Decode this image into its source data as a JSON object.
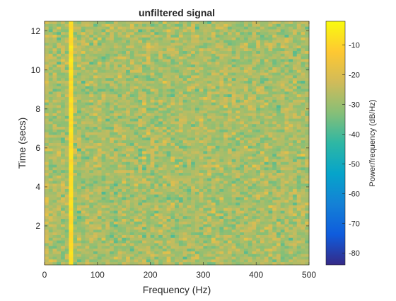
{
  "chart_data": {
    "type": "heatmap",
    "title": "unfiltered signal",
    "xlabel": "Frequency (Hz)",
    "ylabel": "Time (secs)",
    "colorbar_label": "Power/frequency (dB/Hz)",
    "xlim": [
      0,
      500
    ],
    "ylim": [
      0,
      12.5
    ],
    "xticks": [
      0,
      100,
      200,
      300,
      400,
      500
    ],
    "yticks": [
      2,
      4,
      6,
      8,
      10,
      12
    ],
    "clim": [
      -84,
      -2
    ],
    "cticks": [
      -10,
      -20,
      -30,
      -40,
      -50,
      -60,
      -70,
      -80
    ],
    "colormap": "parula",
    "colormap_stops": [
      "#352a87",
      "#0f5cdd",
      "#1481d6",
      "#06a4ca",
      "#2eb7a4",
      "#87bf77",
      "#d1bb59",
      "#fec832",
      "#f9fb0e"
    ],
    "background_level": -28,
    "noise_spread": 7,
    "freq_bins": 65,
    "time_segments": 90,
    "lines": [
      {
        "frequency": 50,
        "level": -8
      }
    ]
  }
}
